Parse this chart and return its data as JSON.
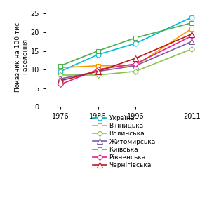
{
  "years": [
    1976,
    1986,
    1996,
    2011
  ],
  "series": [
    {
      "name": "Україна",
      "values": [
        9.5,
        14.0,
        17.0,
        24.0
      ],
      "color": "#00bcd4",
      "marker": "o",
      "markersize": 5
    },
    {
      "name": "Вінницька",
      "values": [
        10.5,
        11.0,
        11.0,
        21.0
      ],
      "color": "#ff9800",
      "marker": "s",
      "markersize": 5
    },
    {
      "name": "Волинська",
      "values": [
        8.5,
        8.5,
        9.5,
        15.5
      ],
      "color": "#8bc34a",
      "marker": "D",
      "markersize": 4
    },
    {
      "name": "Житомирська",
      "values": [
        7.5,
        9.5,
        11.0,
        17.5
      ],
      "color": "#7b5ea7",
      "marker": "^",
      "markersize": 6
    },
    {
      "name": "Київська",
      "values": [
        11.0,
        15.0,
        18.5,
        22.5
      ],
      "color": "#4caf50",
      "marker": "s",
      "markersize": 5
    },
    {
      "name": "Рівненська",
      "values": [
        6.0,
        10.0,
        11.5,
        19.0
      ],
      "color": "#e91e8c",
      "marker": "D",
      "markersize": 4
    },
    {
      "name": "Чернігівська",
      "values": [
        7.0,
        9.5,
        13.0,
        19.5
      ],
      "color": "#b71c1c",
      "marker": "^",
      "markersize": 6
    }
  ],
  "ylabel": "Показник на 100 тис.\nнаселення",
  "ylim": [
    0,
    27
  ],
  "yticks": [
    0,
    5,
    10,
    15,
    20,
    25
  ],
  "xticks": [
    1976,
    1986,
    1996,
    2011
  ],
  "linewidth": 1.2,
  "background_color": "#ffffff"
}
